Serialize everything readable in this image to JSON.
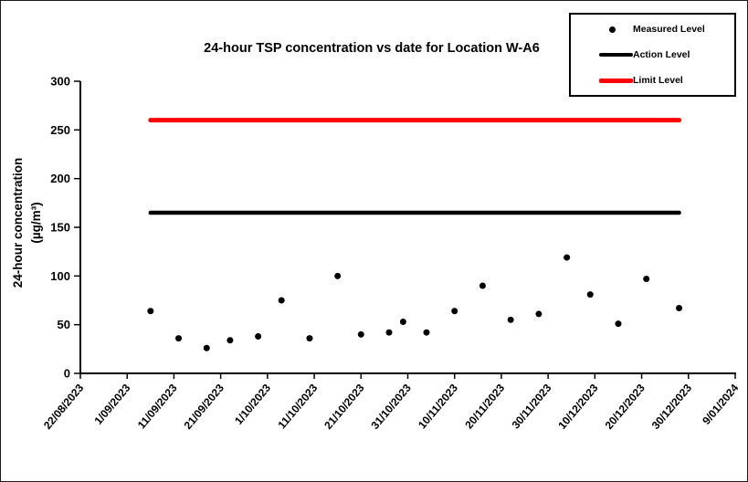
{
  "frame": {
    "background": "#ffffff",
    "border_color": "#1a1a1a"
  },
  "chart_data": {
    "type": "scatter",
    "title": "24-hour TSP concentration vs date for Location W-A6",
    "ylabel": "24-hour concentration",
    "ylabel_units": "(µg/m³)",
    "xlabel": "",
    "ylim": [
      0,
      300
    ],
    "y_ticks": [
      0,
      50,
      100,
      150,
      200,
      250,
      300
    ],
    "x_tick_labels": [
      "22/08/2023",
      "1/09/2023",
      "11/09/2023",
      "21/09/2023",
      "1/10/2023",
      "11/10/2023",
      "21/10/2023",
      "31/10/2023",
      "10/11/2023",
      "20/11/2023",
      "30/11/2023",
      "10/12/2023",
      "20/12/2023",
      "30/12/2023",
      "9/01/2024"
    ],
    "grid": false,
    "series": [
      {
        "name": "Measured Level",
        "type": "scatter",
        "color": "#000000",
        "points": [
          {
            "date": "6/09/2023",
            "value": 64
          },
          {
            "date": "12/09/2023",
            "value": 36
          },
          {
            "date": "18/09/2023",
            "value": 26
          },
          {
            "date": "23/09/2023",
            "value": 34
          },
          {
            "date": "29/09/2023",
            "value": 38
          },
          {
            "date": "4/10/2023",
            "value": 75
          },
          {
            "date": "10/10/2023",
            "value": 36
          },
          {
            "date": "16/10/2023",
            "value": 100
          },
          {
            "date": "21/10/2023",
            "value": 40
          },
          {
            "date": "27/10/2023",
            "value": 42
          },
          {
            "date": "30/10/2023",
            "value": 53
          },
          {
            "date": "4/11/2023",
            "value": 42
          },
          {
            "date": "10/11/2023",
            "value": 64
          },
          {
            "date": "16/11/2023",
            "value": 90
          },
          {
            "date": "22/11/2023",
            "value": 55
          },
          {
            "date": "28/11/2023",
            "value": 61
          },
          {
            "date": "4/12/2023",
            "value": 119
          },
          {
            "date": "9/12/2023",
            "value": 81
          },
          {
            "date": "15/12/2023",
            "value": 51
          },
          {
            "date": "21/12/2023",
            "value": 97
          },
          {
            "date": "28/12/2023",
            "value": 67
          }
        ]
      },
      {
        "name": "Action Level",
        "type": "hline",
        "color": "#000000",
        "value": 165,
        "span": [
          "6/09/2023",
          "28/12/2023"
        ]
      },
      {
        "name": "Limit Level",
        "type": "hline",
        "color": "#ff0000",
        "value": 260,
        "span": [
          "6/09/2023",
          "28/12/2023"
        ]
      }
    ],
    "legend": {
      "position": "top-right",
      "entries": [
        {
          "label": "Measured Level",
          "marker": "dot",
          "color": "#000000"
        },
        {
          "label": "Action Level",
          "marker": "line",
          "color": "#000000"
        },
        {
          "label": "Limit Level",
          "marker": "line",
          "color": "#ff0000"
        }
      ]
    }
  }
}
